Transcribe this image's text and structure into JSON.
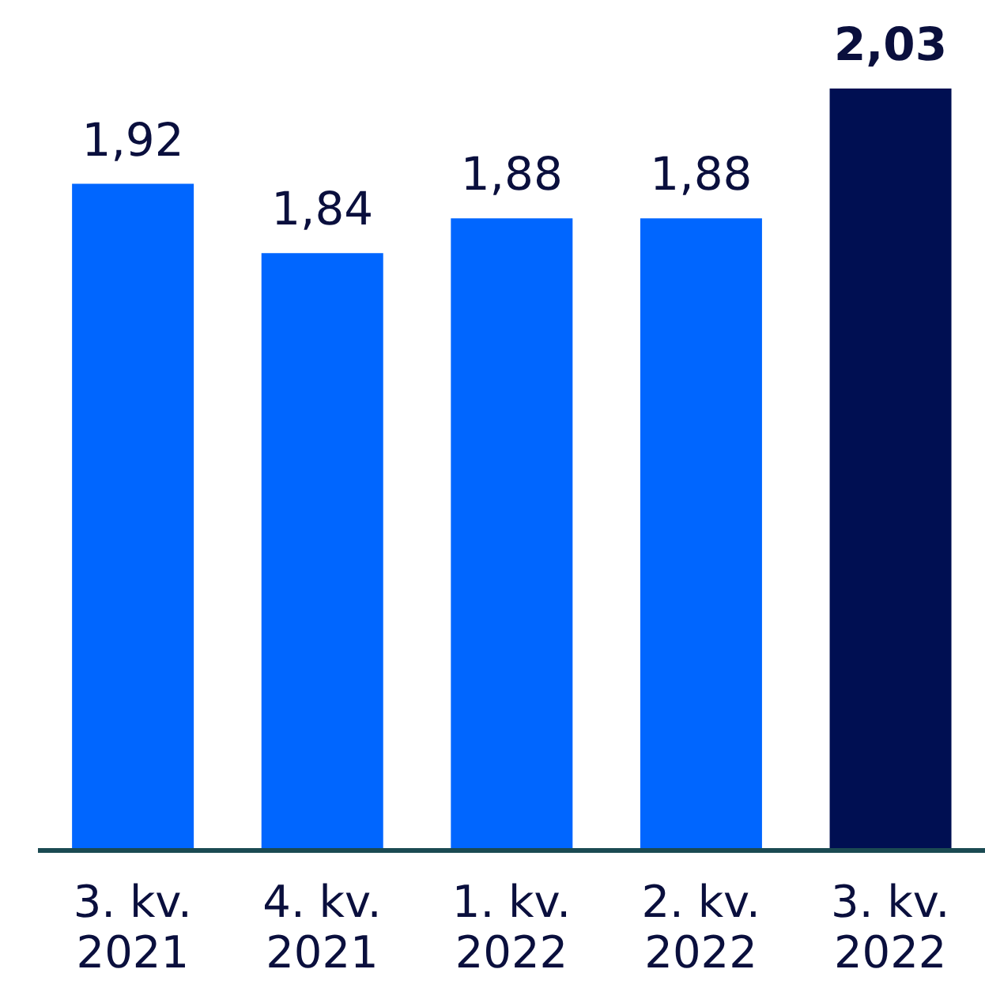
{
  "chart_data": {
    "type": "bar",
    "categories": [
      "3. kv. 2021",
      "4. kv. 2021",
      "1. kv. 2022",
      "2. kv. 2022",
      "3. kv. 2022"
    ],
    "values": [
      1.92,
      1.84,
      1.88,
      1.88,
      2.03
    ],
    "colors": [
      "#0066ff",
      "#0066ff",
      "#0066ff",
      "#0066ff",
      "#000f52"
    ],
    "value_labels": [
      "1,92",
      "1,84",
      "1,88",
      "1,88",
      "2,03"
    ],
    "ylim": [
      1.15,
      2.03
    ],
    "tick_labels": "x"
  }
}
